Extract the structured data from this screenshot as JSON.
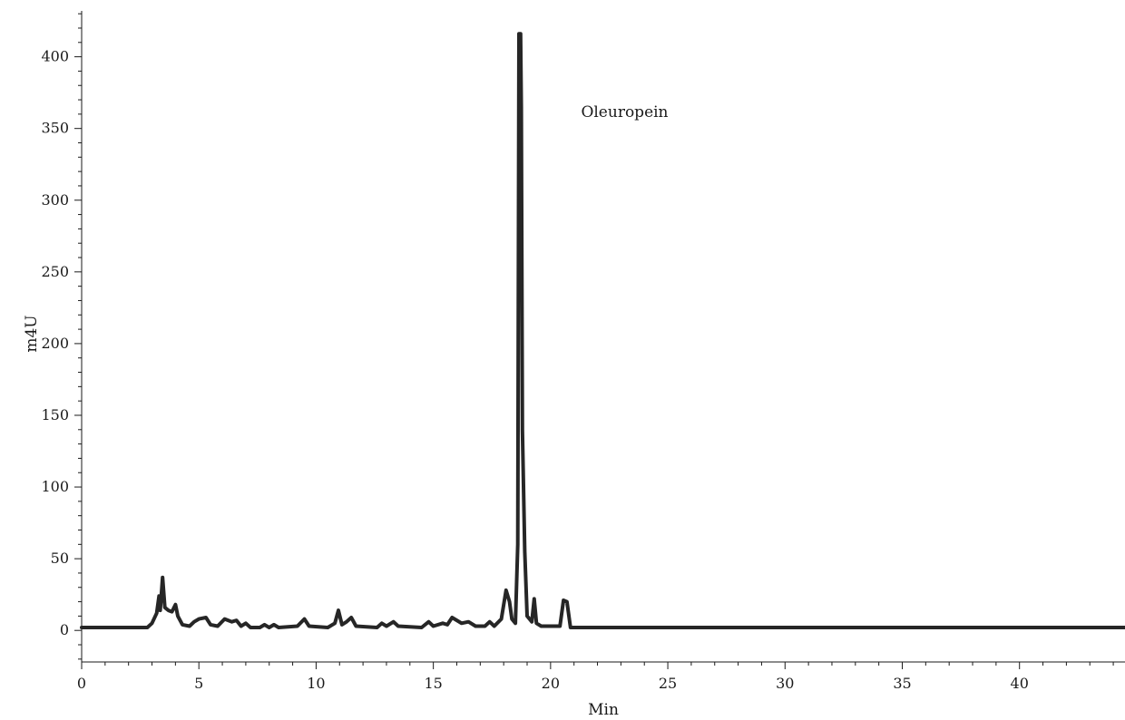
{
  "chart_data": {
    "type": "line",
    "title": "",
    "xlabel": "Min",
    "ylabel": "m4U",
    "xlim": [
      0,
      44.5
    ],
    "ylim": [
      -22,
      432
    ],
    "x_ticks": [
      0,
      5,
      10,
      15,
      20,
      25,
      30,
      35,
      40
    ],
    "y_ticks": [
      0,
      50,
      100,
      150,
      200,
      250,
      300,
      350,
      400
    ],
    "grid": false,
    "colors": {
      "trace": "#262626",
      "axis": "#1a1a1a",
      "text": "#1a1a1a"
    },
    "series": [
      {
        "points": [
          [
            0,
            2
          ],
          [
            2.8,
            2
          ],
          [
            3.0,
            5
          ],
          [
            3.2,
            12
          ],
          [
            3.3,
            24
          ],
          [
            3.35,
            14
          ],
          [
            3.45,
            37
          ],
          [
            3.55,
            16
          ],
          [
            3.7,
            14
          ],
          [
            3.85,
            13
          ],
          [
            4.0,
            18
          ],
          [
            4.1,
            10
          ],
          [
            4.3,
            4
          ],
          [
            4.6,
            3
          ],
          [
            4.8,
            6
          ],
          [
            5.0,
            8
          ],
          [
            5.3,
            9
          ],
          [
            5.5,
            4
          ],
          [
            5.8,
            3
          ],
          [
            6.1,
            8
          ],
          [
            6.4,
            6
          ],
          [
            6.6,
            7
          ],
          [
            6.8,
            3
          ],
          [
            7.0,
            5
          ],
          [
            7.2,
            2
          ],
          [
            7.6,
            2
          ],
          [
            7.8,
            4
          ],
          [
            8.0,
            2
          ],
          [
            8.2,
            4
          ],
          [
            8.4,
            2
          ],
          [
            9.2,
            3
          ],
          [
            9.5,
            8
          ],
          [
            9.7,
            3
          ],
          [
            10.5,
            2
          ],
          [
            10.8,
            5
          ],
          [
            10.95,
            14
          ],
          [
            11.1,
            4
          ],
          [
            11.3,
            6
          ],
          [
            11.5,
            9
          ],
          [
            11.7,
            3
          ],
          [
            12.6,
            2
          ],
          [
            12.8,
            5
          ],
          [
            13.0,
            3
          ],
          [
            13.3,
            6
          ],
          [
            13.5,
            3
          ],
          [
            14.5,
            2
          ],
          [
            14.8,
            6
          ],
          [
            15.0,
            3
          ],
          [
            15.4,
            5
          ],
          [
            15.6,
            4
          ],
          [
            15.8,
            9
          ],
          [
            16.0,
            7
          ],
          [
            16.2,
            5
          ],
          [
            16.5,
            6
          ],
          [
            16.8,
            3
          ],
          [
            17.2,
            3
          ],
          [
            17.4,
            6
          ],
          [
            17.6,
            3
          ],
          [
            17.9,
            8
          ],
          [
            18.1,
            28
          ],
          [
            18.25,
            20
          ],
          [
            18.35,
            8
          ],
          [
            18.5,
            5
          ],
          [
            18.6,
            60
          ],
          [
            18.65,
            416
          ],
          [
            18.72,
            416
          ],
          [
            18.75,
            365
          ],
          [
            18.8,
            140
          ],
          [
            18.9,
            55
          ],
          [
            19.0,
            10
          ],
          [
            19.2,
            6
          ],
          [
            19.3,
            22
          ],
          [
            19.4,
            5
          ],
          [
            19.6,
            3
          ],
          [
            20.4,
            3
          ],
          [
            20.55,
            21
          ],
          [
            20.7,
            20
          ],
          [
            20.85,
            2
          ],
          [
            44.5,
            2
          ]
        ]
      }
    ],
    "annotations": [
      {
        "text": "Oleuropein",
        "x": 21.3,
        "y": 358
      }
    ]
  }
}
